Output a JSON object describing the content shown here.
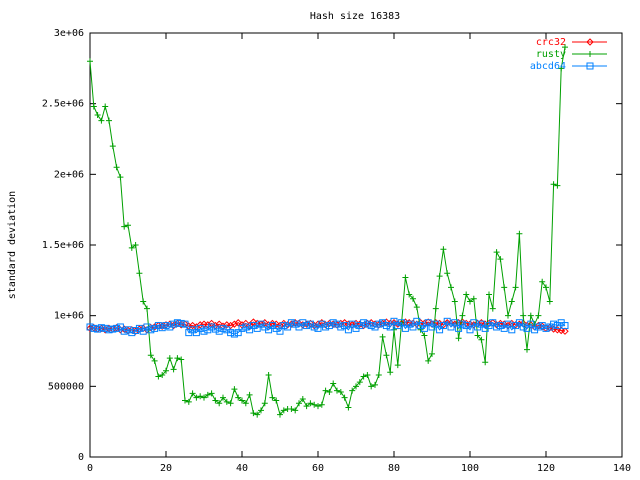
{
  "chart_data": {
    "type": "line",
    "title": "Hash size 16383",
    "ylabel": "standard deviation",
    "x": [
      0,
      1,
      2,
      3,
      4,
      5,
      6,
      7,
      8,
      9,
      10,
      11,
      12,
      13,
      14,
      15,
      16,
      17,
      18,
      19,
      20,
      21,
      22,
      23,
      24,
      25,
      26,
      27,
      28,
      29,
      30,
      31,
      32,
      33,
      34,
      35,
      36,
      37,
      38,
      39,
      40,
      41,
      42,
      43,
      44,
      45,
      46,
      47,
      48,
      49,
      50,
      51,
      52,
      53,
      54,
      55,
      56,
      57,
      58,
      59,
      60,
      61,
      62,
      63,
      64,
      65,
      66,
      67,
      68,
      69,
      70,
      71,
      72,
      73,
      74,
      75,
      76,
      77,
      78,
      79,
      80,
      81,
      82,
      83,
      84,
      85,
      86,
      87,
      88,
      89,
      90,
      91,
      92,
      93,
      94,
      95,
      96,
      97,
      98,
      99,
      100,
      101,
      102,
      103,
      104,
      105,
      106,
      107,
      108,
      109,
      110,
      111,
      112,
      113,
      114,
      115,
      116,
      117,
      118,
      119,
      120,
      121,
      122,
      123,
      124,
      125
    ],
    "series": [
      {
        "name": "crc32",
        "color": "#ff0000",
        "marker": "diamond",
        "values": [
          910000,
          915000,
          905000,
          910000,
          900000,
          910000,
          905000,
          915000,
          900000,
          905000,
          895000,
          900000,
          890000,
          905000,
          910000,
          900000,
          915000,
          920000,
          930000,
          925000,
          935000,
          940000,
          930000,
          945000,
          935000,
          940000,
          925000,
          930000,
          920000,
          935000,
          940000,
          935000,
          945000,
          930000,
          940000,
          925000,
          935000,
          930000,
          940000,
          950000,
          935000,
          945000,
          930000,
          955000,
          945000,
          940000,
          950000,
          935000,
          945000,
          940000,
          930000,
          945000,
          935000,
          940000,
          950000,
          945000,
          935000,
          940000,
          945000,
          930000,
          940000,
          950000,
          935000,
          945000,
          940000,
          935000,
          945000,
          950000,
          940000,
          935000,
          945000,
          940000,
          930000,
          945000,
          950000,
          940000,
          935000,
          945000,
          955000,
          945000,
          950000,
          940000,
          945000,
          955000,
          950000,
          945000,
          940000,
          950000,
          945000,
          955000,
          940000,
          950000,
          945000,
          935000,
          950000,
          945000,
          940000,
          950000,
          955000,
          945000,
          940000,
          935000,
          945000,
          950000,
          940000,
          945000,
          950000,
          935000,
          945000,
          940000,
          930000,
          945000,
          935000,
          940000,
          945000,
          930000,
          935000,
          920000,
          930000,
          925000,
          910000,
          915000,
          905000,
          900000,
          895000,
          890000
        ]
      },
      {
        "name": "rusty",
        "color": "#00a000",
        "marker": "plus",
        "values": [
          2800000,
          2480000,
          2420000,
          2380000,
          2480000,
          2380000,
          2200000,
          2050000,
          1980000,
          1630000,
          1640000,
          1480000,
          1500000,
          1300000,
          1100000,
          1050000,
          720000,
          680000,
          570000,
          580000,
          610000,
          700000,
          620000,
          700000,
          690000,
          400000,
          390000,
          450000,
          420000,
          430000,
          420000,
          440000,
          450000,
          400000,
          380000,
          420000,
          390000,
          380000,
          480000,
          420000,
          400000,
          380000,
          440000,
          310000,
          300000,
          330000,
          380000,
          580000,
          420000,
          400000,
          300000,
          330000,
          340000,
          340000,
          330000,
          380000,
          410000,
          360000,
          380000,
          370000,
          360000,
          370000,
          470000,
          460000,
          520000,
          470000,
          460000,
          420000,
          350000,
          470000,
          500000,
          530000,
          570000,
          580000,
          500000,
          510000,
          580000,
          850000,
          720000,
          600000,
          900000,
          650000,
          950000,
          1270000,
          1150000,
          1120000,
          1060000,
          900000,
          860000,
          680000,
          730000,
          1050000,
          1280000,
          1470000,
          1300000,
          1200000,
          1100000,
          840000,
          1000000,
          1150000,
          1100000,
          1120000,
          860000,
          830000,
          670000,
          1150000,
          1050000,
          1450000,
          1400000,
          1200000,
          1000000,
          1100000,
          1200000,
          1580000,
          1000000,
          760000,
          1000000,
          940000,
          1000000,
          1240000,
          1200000,
          1100000,
          1930000,
          1920000,
          2750000,
          2900000
        ]
      },
      {
        "name": "abcd64",
        "color": "#0080ff",
        "marker": "square",
        "values": [
          920000,
          910000,
          905000,
          915000,
          910000,
          900000,
          905000,
          910000,
          920000,
          890000,
          900000,
          880000,
          895000,
          910000,
          890000,
          920000,
          900000,
          910000,
          930000,
          915000,
          930000,
          920000,
          940000,
          950000,
          945000,
          940000,
          880000,
          900000,
          880000,
          910000,
          890000,
          900000,
          920000,
          905000,
          890000,
          910000,
          900000,
          880000,
          870000,
          880000,
          910000,
          920000,
          900000,
          930000,
          910000,
          940000,
          920000,
          900000,
          930000,
          910000,
          890000,
          930000,
          920000,
          950000,
          940000,
          920000,
          950000,
          930000,
          940000,
          920000,
          910000,
          940000,
          920000,
          930000,
          950000,
          940000,
          920000,
          930000,
          900000,
          940000,
          910000,
          930000,
          950000,
          940000,
          930000,
          920000,
          940000,
          950000,
          930000,
          920000,
          960000,
          930000,
          950000,
          910000,
          940000,
          920000,
          960000,
          930000,
          910000,
          950000,
          920000,
          940000,
          900000,
          930000,
          960000,
          920000,
          950000,
          910000,
          940000,
          930000,
          900000,
          950000,
          920000,
          940000,
          910000,
          930000,
          950000,
          920000,
          930000,
          910000,
          940000,
          900000,
          930000,
          950000,
          920000,
          910000,
          940000,
          900000,
          920000,
          930000,
          910000,
          920000,
          940000,
          930000,
          950000,
          930000
        ]
      }
    ],
    "xlim": [
      0,
      140
    ],
    "xticks": [
      0,
      20,
      40,
      60,
      80,
      100,
      120,
      140
    ],
    "ylim": [
      0,
      3000000
    ],
    "yticks": [
      0,
      500000,
      {
        "value": 1000000,
        "label": "1e+06"
      },
      {
        "value": 1500000,
        "label": "1.5e+06"
      },
      {
        "value": 2000000,
        "label": "2e+06"
      },
      {
        "value": 2500000,
        "label": "2.5e+06"
      },
      {
        "value": 3000000,
        "label": "3e+06"
      }
    ],
    "grid": false,
    "legend": "top-right"
  }
}
